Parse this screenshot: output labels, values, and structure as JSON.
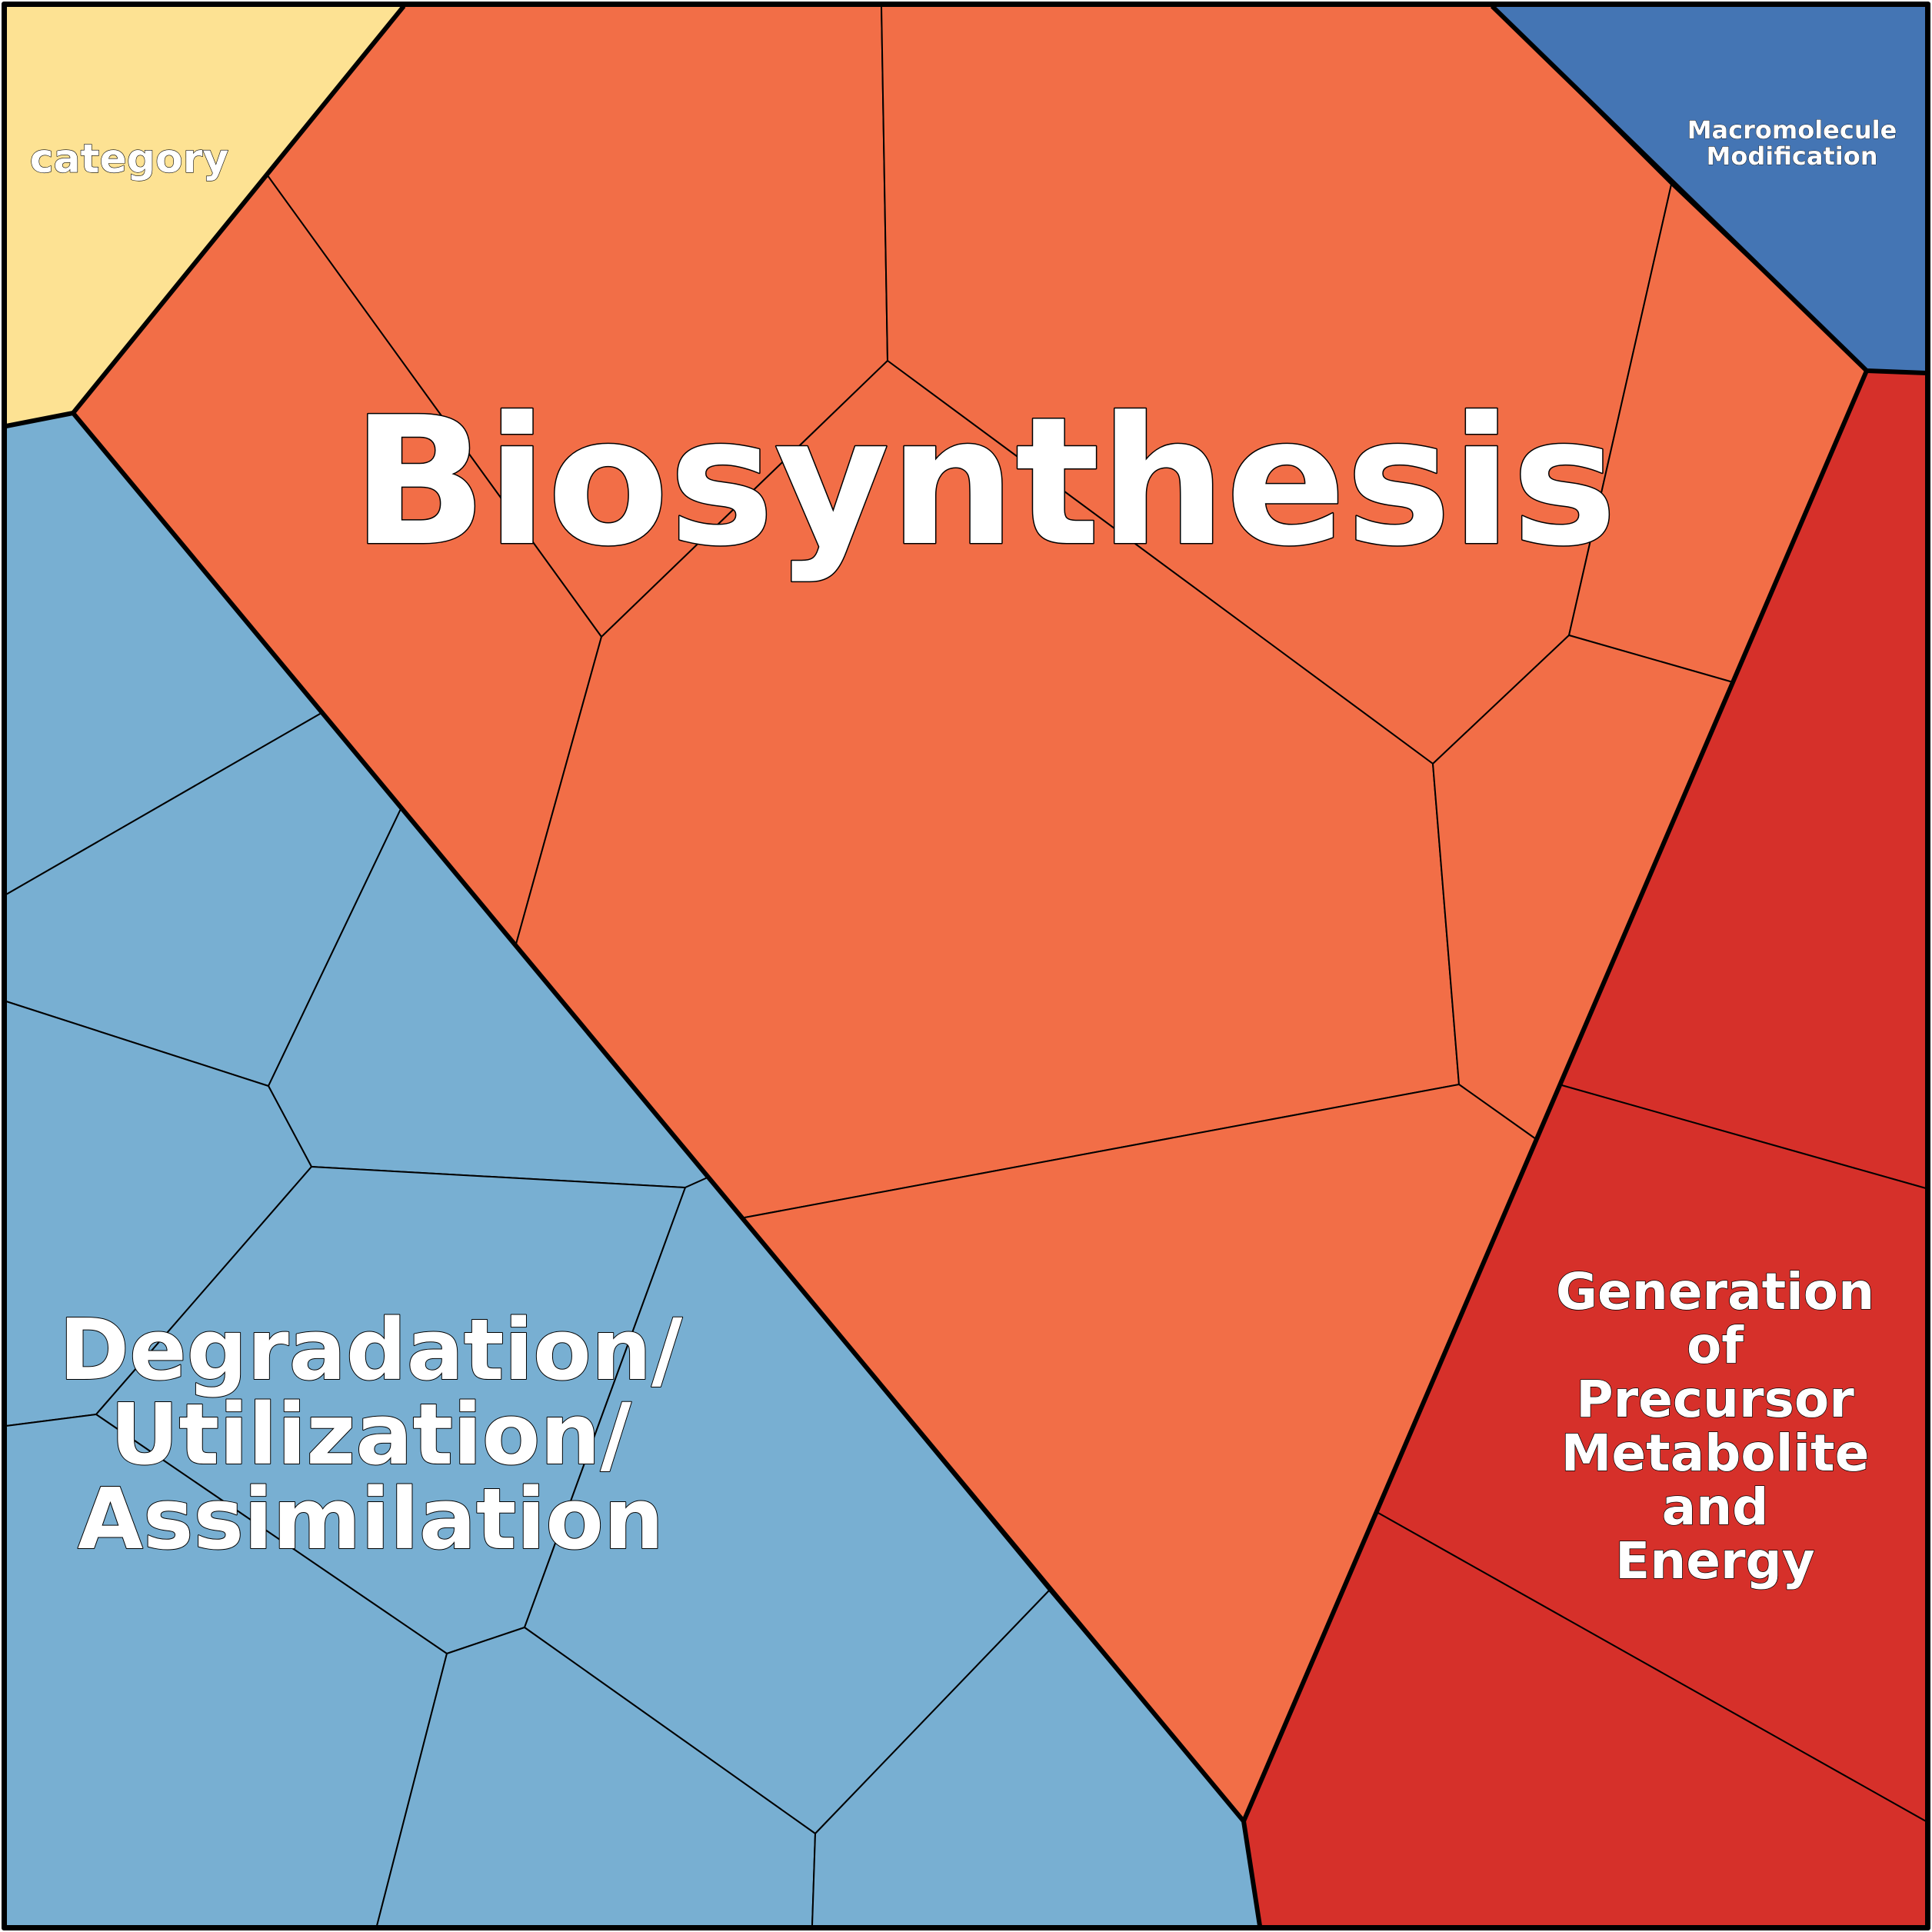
{
  "diagram": {
    "type": "voronoi-treemap",
    "colors": {
      "category": "#FDE293",
      "biosynthesis": "#F26E47",
      "degradation": "#78AFD2",
      "generation": "#D6302A",
      "macromolecule": "#4475B4",
      "outline": "#000000",
      "label": "#FFFFFF"
    },
    "labels": {
      "category": "category",
      "biosynthesis": "Biosynthesis",
      "degradation": [
        "Degradation/",
        "Utilization/",
        "Assimilation"
      ],
      "generation": [
        "Generation",
        "of",
        "Precursor",
        "Metabolite",
        "and",
        "Energy"
      ],
      "macromolecule": [
        "Macromolecule",
        "Modification"
      ]
    }
  }
}
